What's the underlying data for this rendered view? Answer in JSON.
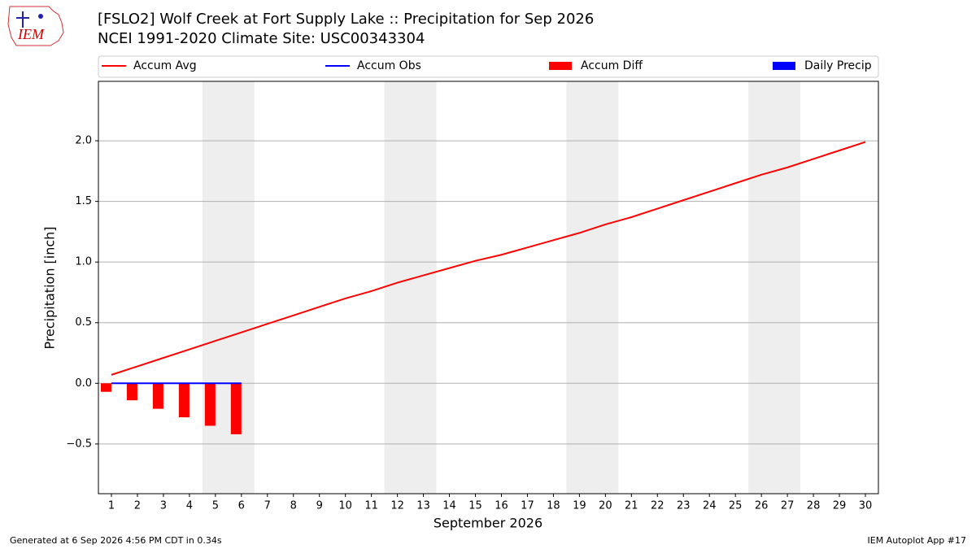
{
  "logo_text": "IEM",
  "footer": {
    "left": "Generated at 6 Sep 2026 4:56 PM CDT in 0.34s",
    "right": "IEM Autoplot App #17"
  },
  "chart_data": {
    "type": "combo",
    "title": "[FSLO2] Wolf Creek at Fort Supply Lake :: Precipitation for Sep 2026",
    "subtitle": "NCEI 1991-2020 Climate Site: USC00343304",
    "xlabel": "September 2026",
    "ylabel": "Precipitation [inch]",
    "x": [
      1,
      2,
      3,
      4,
      5,
      6,
      7,
      8,
      9,
      10,
      11,
      12,
      13,
      14,
      15,
      16,
      17,
      18,
      19,
      20,
      21,
      22,
      23,
      24,
      25,
      26,
      27,
      28,
      29,
      30
    ],
    "xlim": [
      0.5,
      30.5
    ],
    "xticks": [
      1,
      2,
      3,
      4,
      5,
      6,
      7,
      8,
      9,
      10,
      11,
      12,
      13,
      14,
      15,
      16,
      17,
      18,
      19,
      20,
      21,
      22,
      23,
      24,
      25,
      26,
      27,
      28,
      29,
      30
    ],
    "ylim": [
      -0.91,
      2.49
    ],
    "yticks": [
      {
        "value": -0.5,
        "label": "−0.5"
      },
      {
        "value": 0,
        "label": "0.0"
      },
      {
        "value": 0.5,
        "label": "0.5"
      },
      {
        "value": 1,
        "label": "1.0"
      },
      {
        "value": 1.5,
        "label": "1.5"
      },
      {
        "value": 2,
        "label": "2.0"
      }
    ],
    "grid": true,
    "legend": "upper center",
    "shaded_ranges": [
      [
        4.5,
        6.5
      ],
      [
        11.5,
        13.5
      ],
      [
        18.5,
        20.5
      ],
      [
        25.5,
        27.5
      ]
    ],
    "shade_color": "#eeeeee",
    "series": [
      {
        "name": "Accum Avg",
        "type": "line",
        "color": "#ff0000",
        "values": [
          0.07,
          0.14,
          0.21,
          0.28,
          0.35,
          0.42,
          0.49,
          0.56,
          0.63,
          0.7,
          0.76,
          0.83,
          0.89,
          0.95,
          1.01,
          1.06,
          1.12,
          1.18,
          1.24,
          1.31,
          1.37,
          1.44,
          1.51,
          1.58,
          1.65,
          1.72,
          1.78,
          1.85,
          1.92,
          1.99
        ]
      },
      {
        "name": "Accum Obs",
        "type": "line",
        "color": "#0000ff",
        "values": [
          0,
          0,
          0,
          0,
          0,
          0,
          null,
          null,
          null,
          null,
          null,
          null,
          null,
          null,
          null,
          null,
          null,
          null,
          null,
          null,
          null,
          null,
          null,
          null,
          null,
          null,
          null,
          null,
          null,
          null
        ]
      },
      {
        "name": "Accum Diff",
        "type": "bar",
        "side": "left",
        "color": "#ff0000",
        "values": [
          -0.07,
          -0.14,
          -0.21,
          -0.28,
          -0.35,
          -0.42,
          null,
          null,
          null,
          null,
          null,
          null,
          null,
          null,
          null,
          null,
          null,
          null,
          null,
          null,
          null,
          null,
          null,
          null,
          null,
          null,
          null,
          null,
          null,
          null
        ]
      },
      {
        "name": "Daily Precip",
        "type": "bar",
        "side": "right",
        "color": "#0000ff",
        "values": [
          0,
          0,
          0,
          0,
          0,
          0,
          null,
          null,
          null,
          null,
          null,
          null,
          null,
          null,
          null,
          null,
          null,
          null,
          null,
          null,
          null,
          null,
          null,
          null,
          null,
          null,
          null,
          null,
          null,
          null
        ]
      }
    ]
  }
}
